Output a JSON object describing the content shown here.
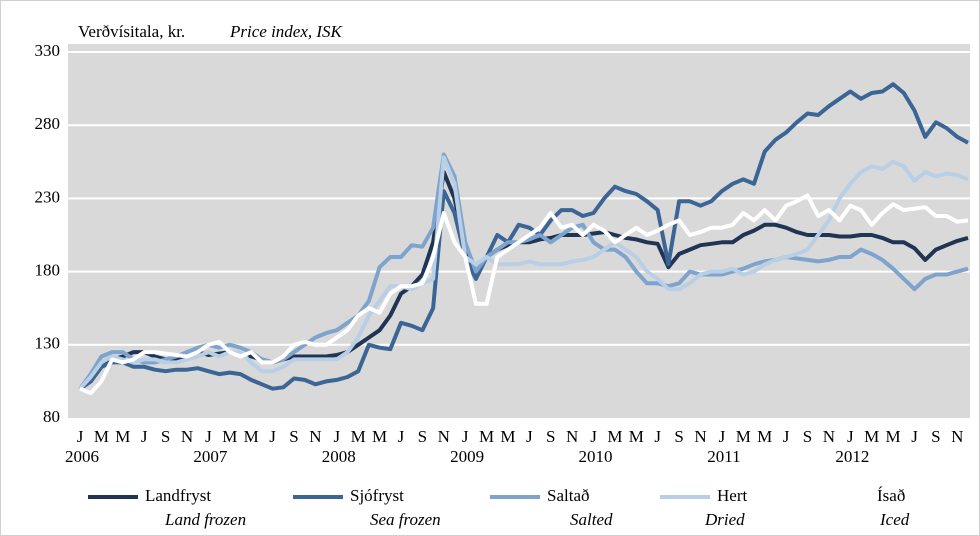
{
  "chart_data": {
    "type": "line",
    "y_label": "Verðvísitala, kr.",
    "y_label_en": "Price index, ISK",
    "categories": [
      "J",
      null,
      "M",
      null,
      "M",
      null,
      "J",
      null,
      "S",
      null,
      "N",
      null,
      "J",
      null,
      "M",
      null,
      "M",
      null,
      "J",
      null,
      "S",
      null,
      "N",
      null,
      "J",
      null,
      "M",
      null,
      "M",
      null,
      "J",
      null,
      "S",
      null,
      "N",
      null,
      "J",
      null,
      "M",
      null,
      "M",
      null,
      "J",
      null,
      "S",
      null,
      "N",
      null,
      "J",
      null,
      "M",
      null,
      "M",
      null,
      "J",
      null,
      "S",
      null,
      "N",
      null,
      "J",
      null,
      "M",
      null,
      "M",
      null,
      "J",
      null,
      "S",
      null,
      "N",
      null,
      "J",
      null,
      "M",
      null,
      "M",
      null,
      "J",
      null,
      "S",
      null,
      "N",
      null
    ],
    "years": [
      "2006",
      "2007",
      "2008",
      "2009",
      "2010",
      "2011",
      "2012"
    ],
    "ylim": [
      80,
      330
    ],
    "yticks": [
      80,
      130,
      180,
      230,
      280,
      330
    ],
    "grid": true,
    "series": [
      {
        "name": "Landfryst",
        "name_en": "Land frozen",
        "color": "#1f3553",
        "values": [
          100,
          105,
          115,
          120,
          122,
          125,
          125,
          122,
          120,
          120,
          122,
          125,
          123,
          124,
          125,
          123,
          122,
          120,
          118,
          120,
          122,
          122,
          122,
          122,
          123,
          125,
          130,
          135,
          140,
          150,
          165,
          170,
          178,
          200,
          248,
          230,
          195,
          178,
          190,
          195,
          198,
          200,
          200,
          202,
          203,
          205,
          205,
          205,
          206,
          207,
          205,
          203,
          202,
          200,
          199,
          183,
          192,
          195,
          198,
          199,
          200,
          200,
          205,
          208,
          212,
          212,
          210,
          207,
          205,
          205,
          205,
          204,
          204,
          205,
          205,
          203,
          200,
          200,
          196,
          188,
          195,
          198,
          201,
          203
        ]
      },
      {
        "name": "Sjófryst",
        "name_en": "Sea frozen",
        "color": "#3a6595",
        "values": [
          100,
          105,
          115,
          118,
          118,
          115,
          115,
          113,
          112,
          113,
          113,
          114,
          112,
          110,
          111,
          110,
          106,
          103,
          100,
          101,
          107,
          106,
          103,
          105,
          106,
          108,
          112,
          130,
          128,
          127,
          145,
          143,
          140,
          155,
          235,
          220,
          190,
          175,
          190,
          205,
          200,
          212,
          210,
          205,
          215,
          222,
          222,
          218,
          220,
          230,
          238,
          235,
          233,
          228,
          222,
          185,
          228,
          228,
          225,
          228,
          235,
          240,
          243,
          240,
          262,
          270,
          275,
          282,
          288,
          287,
          293,
          298,
          303,
          298,
          302,
          303,
          308,
          302,
          290,
          272,
          282,
          278,
          272,
          268
        ]
      },
      {
        "name": "Saltað",
        "name_en": "Salted",
        "color": "#7ea3cc",
        "values": [
          100,
          110,
          122,
          125,
          125,
          120,
          118,
          118,
          120,
          122,
          125,
          128,
          130,
          128,
          130,
          128,
          125,
          120,
          118,
          120,
          125,
          130,
          135,
          138,
          140,
          145,
          150,
          160,
          183,
          190,
          190,
          198,
          197,
          210,
          260,
          245,
          200,
          180,
          190,
          195,
          200,
          200,
          202,
          205,
          200,
          205,
          210,
          212,
          200,
          195,
          195,
          190,
          180,
          172,
          172,
          170,
          172,
          180,
          178,
          178,
          178,
          180,
          182,
          185,
          187,
          188,
          190,
          189,
          188,
          187,
          188,
          190,
          190,
          195,
          192,
          188,
          182,
          175,
          168,
          175,
          178,
          178,
          180,
          182
        ]
      },
      {
        "name": "Hert",
        "name_en": "Dried",
        "color": "#b8cfe6",
        "values": [
          100,
          108,
          118,
          122,
          120,
          118,
          120,
          120,
          118,
          118,
          120,
          122,
          125,
          122,
          125,
          125,
          118,
          112,
          112,
          115,
          120,
          120,
          120,
          120,
          120,
          125,
          135,
          150,
          160,
          170,
          170,
          168,
          172,
          175,
          258,
          240,
          190,
          185,
          190,
          185,
          185,
          185,
          187,
          185,
          185,
          185,
          187,
          188,
          190,
          195,
          200,
          195,
          190,
          180,
          175,
          168,
          168,
          172,
          178,
          180,
          180,
          182,
          178,
          180,
          185,
          188,
          190,
          192,
          195,
          205,
          215,
          230,
          240,
          248,
          252,
          250,
          255,
          252,
          242,
          248,
          245,
          247,
          246,
          243
        ]
      },
      {
        "name": "Ísað",
        "name_en": "Iced",
        "color": "#ffffff",
        "values": [
          100,
          97,
          105,
          120,
          118,
          120,
          125,
          125,
          124,
          123,
          122,
          125,
          130,
          132,
          125,
          122,
          125,
          118,
          118,
          122,
          130,
          132,
          130,
          130,
          135,
          140,
          150,
          155,
          152,
          165,
          170,
          170,
          172,
          190,
          220,
          200,
          190,
          158,
          158,
          190,
          195,
          200,
          205,
          210,
          220,
          210,
          212,
          205,
          212,
          208,
          200,
          205,
          210,
          205,
          208,
          212,
          215,
          205,
          207,
          210,
          210,
          212,
          220,
          215,
          222,
          215,
          225,
          228,
          232,
          218,
          222,
          215,
          225,
          222,
          212,
          220,
          226,
          222,
          223,
          224,
          218,
          218,
          214,
          215
        ]
      }
    ]
  }
}
